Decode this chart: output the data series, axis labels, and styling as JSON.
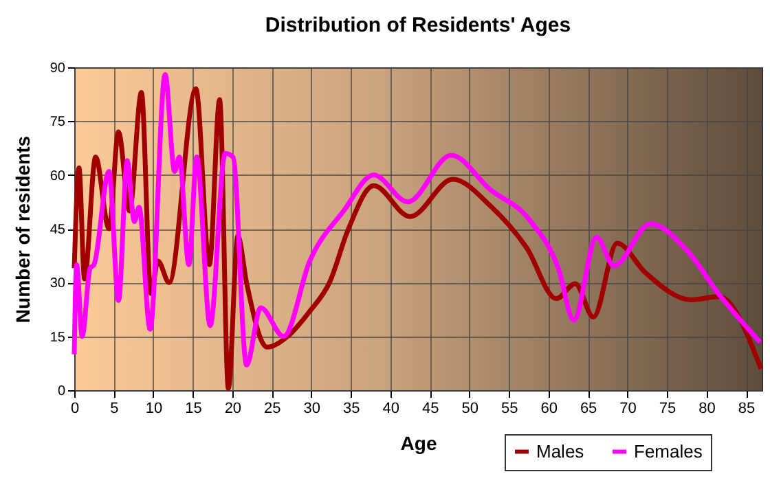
{
  "chart_data": {
    "type": "line",
    "title": "Distribution of Residents' Ages",
    "xlabel": "Age",
    "ylabel": "Number of residents",
    "xlim": [
      0,
      87
    ],
    "xticks": [
      0,
      5,
      10,
      15,
      20,
      25,
      30,
      35,
      40,
      45,
      50,
      55,
      60,
      65,
      70,
      75,
      80,
      85
    ],
    "ylim": [
      0,
      90
    ],
    "yticks": [
      0,
      15,
      30,
      45,
      60,
      75,
      90
    ],
    "grid": true,
    "legend": "bottom right",
    "marker": "none",
    "line_style": "solid",
    "series": [
      {
        "name": "Males",
        "color": "#a00000",
        "x": [
          0,
          0.6,
          1.3,
          2.7,
          4.4,
          5.6,
          7,
          8.5,
          9.7,
          10.6,
          12,
          15.4,
          17.1,
          18.4,
          19.5,
          20.7,
          21.8,
          24.4,
          27,
          29.8,
          32.3,
          34.7,
          37.9,
          42.5,
          47.9,
          52.6,
          57.3,
          61,
          63.4,
          65.7,
          68.7,
          72.3,
          78.1,
          81.6,
          86.9
        ],
        "values": [
          34,
          62,
          31,
          65,
          45,
          72,
          50,
          83,
          27,
          36,
          30,
          84,
          35,
          81,
          0.5,
          43,
          30,
          12,
          15,
          22,
          30,
          45,
          57,
          48.4,
          58.8,
          51.5,
          39.5,
          25.5,
          29.7,
          20.4,
          41,
          32.7,
          25.2,
          26.1,
          6
        ]
      },
      {
        "name": "Females",
        "color": "#ff00ff",
        "x": [
          0,
          0.3,
          1,
          2,
          2.5,
          4.4,
          5.6,
          6.7,
          7.6,
          8.2,
          9.6,
          11.5,
          12.7,
          13.3,
          14.5,
          15.5,
          17.2,
          19.1,
          20.1,
          21.8,
          23.6,
          26.5,
          29.8,
          34.1,
          37.9,
          42.2,
          47.7,
          52.6,
          57.6,
          61.3,
          63.2,
          66.1,
          68.3,
          72.9,
          77.6,
          81.6,
          86.8
        ],
        "values": [
          10,
          35,
          15,
          34,
          35,
          61,
          25,
          64,
          47,
          51,
          17,
          88,
          61,
          65,
          35,
          65,
          18,
          66,
          65,
          7,
          23,
          15,
          36,
          50,
          60,
          52.5,
          65.5,
          56,
          47.5,
          33.7,
          19.5,
          42.6,
          34.7,
          46.4,
          38.8,
          26.7,
          13.4
        ]
      }
    ]
  }
}
